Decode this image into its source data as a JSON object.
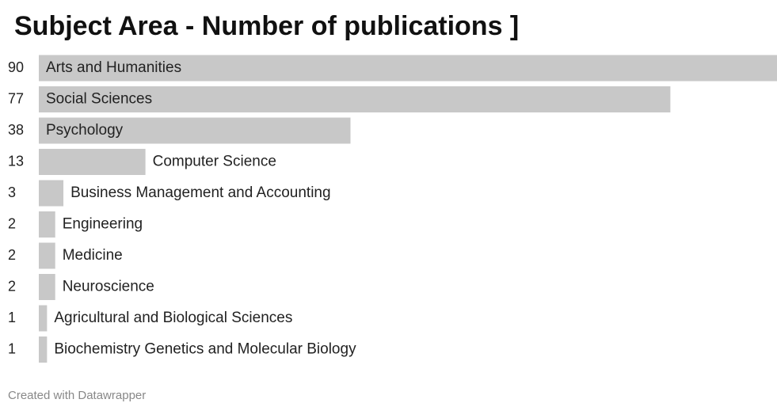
{
  "chart_data": {
    "type": "bar",
    "orientation": "horizontal",
    "title": "Subject Area - Number of publications ]",
    "categories": [
      "Arts and Humanities",
      "Social Sciences",
      "Psychology",
      "Computer Science",
      "Business Management and Accounting",
      "Engineering",
      "Medicine",
      "Neuroscience",
      "Agricultural and Biological Sciences",
      "Biochemistry Genetics and Molecular Biology"
    ],
    "values": [
      90,
      77,
      38,
      13,
      3,
      2,
      2,
      2,
      1,
      1
    ],
    "color": "#c8c8c8",
    "footer": "Created with Datawrapper"
  }
}
